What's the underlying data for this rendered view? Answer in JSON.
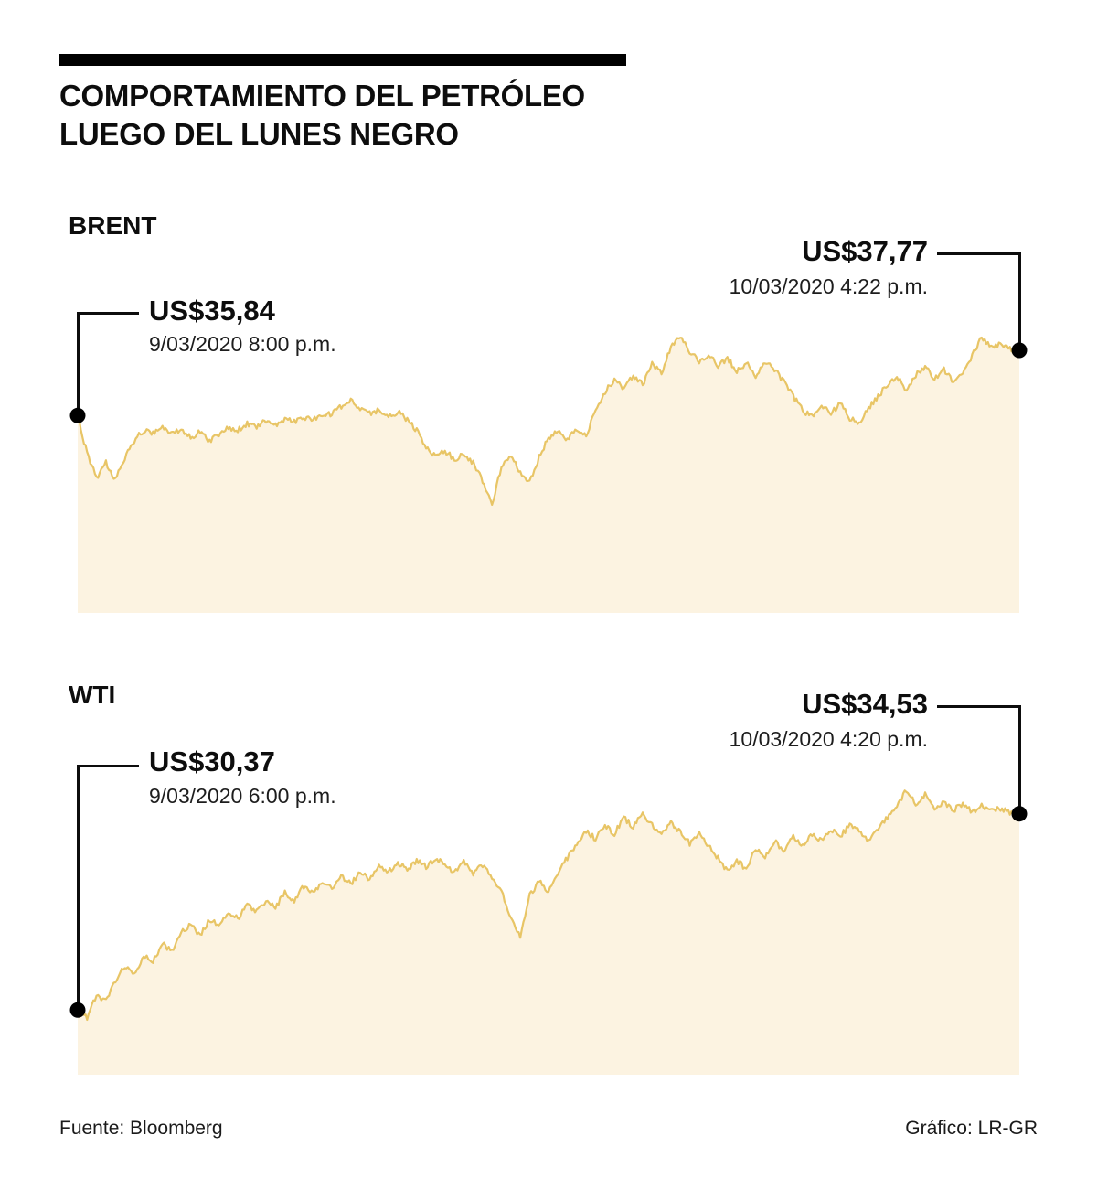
{
  "title": {
    "line1": "COMPORTAMIENTO DEL PETRÓLEO",
    "line2": "LUEGO DEL LUNES NEGRO"
  },
  "footer": {
    "source": "Fuente: Bloomberg",
    "credit": "Gráfico: LR-GR"
  },
  "colors": {
    "line": "#E8C566",
    "fill": "#FCF3E1",
    "marker": "#000000"
  },
  "chart_data": [
    {
      "type": "area",
      "title": "BRENT",
      "xlabel": "",
      "ylabel": "",
      "legend": "none",
      "grid": false,
      "start_annotation": {
        "price": "US$35,84",
        "datetime": "9/03/2020 8:00 p.m.",
        "value": 35.84
      },
      "end_annotation": {
        "price": "US$37,77",
        "datetime": "10/03/2020 4:22 p.m.",
        "value": 37.77
      },
      "ylim": [
        30.0,
        38.8
      ],
      "values": [
        35.84,
        34.7,
        34.0,
        34.45,
        33.95,
        34.6,
        35.1,
        35.4,
        35.3,
        35.5,
        35.3,
        35.45,
        35.2,
        35.35,
        35.1,
        35.3,
        35.5,
        35.4,
        35.6,
        35.5,
        35.7,
        35.55,
        35.75,
        35.65,
        35.8,
        35.7,
        35.85,
        35.9,
        36.1,
        36.3,
        36.05,
        35.9,
        36.0,
        35.8,
        35.95,
        35.7,
        35.4,
        34.9,
        34.65,
        34.8,
        34.55,
        34.7,
        34.45,
        33.9,
        33.2,
        34.35,
        34.65,
        34.15,
        33.85,
        34.6,
        35.2,
        35.35,
        35.15,
        35.4,
        35.25,
        36.0,
        36.55,
        36.9,
        36.6,
        37.05,
        36.75,
        37.35,
        37.1,
        37.9,
        38.2,
        37.7,
        37.45,
        37.65,
        37.3,
        37.55,
        37.15,
        37.4,
        37.0,
        37.45,
        37.2,
        36.85,
        36.4,
        36.0,
        35.8,
        36.15,
        35.9,
        36.2,
        35.75,
        35.6,
        36.05,
        36.4,
        36.75,
        37.0,
        36.6,
        37.05,
        37.3,
        36.9,
        37.2,
        36.8,
        37.05,
        37.6,
        38.15,
        37.85,
        37.95,
        37.8,
        37.77
      ]
    },
    {
      "type": "area",
      "title": "WTI",
      "xlabel": "",
      "ylabel": "",
      "legend": "none",
      "grid": false,
      "start_annotation": {
        "price": "US$30,37",
        "datetime": "9/03/2020 6:00 p.m.",
        "value": 30.37
      },
      "end_annotation": {
        "price": "US$34,53",
        "datetime": "10/03/2020 4:20 p.m.",
        "value": 34.53
      },
      "ylim": [
        29.0,
        35.3
      ],
      "values": [
        30.37,
        30.2,
        30.7,
        30.55,
        31.0,
        31.3,
        31.1,
        31.55,
        31.4,
        31.8,
        31.6,
        32.0,
        32.2,
        31.95,
        32.3,
        32.15,
        32.45,
        32.3,
        32.6,
        32.45,
        32.7,
        32.55,
        32.85,
        32.7,
        33.0,
        32.85,
        33.1,
        32.95,
        33.2,
        33.05,
        33.3,
        33.15,
        33.4,
        33.3,
        33.5,
        33.35,
        33.55,
        33.4,
        33.6,
        33.45,
        33.3,
        33.5,
        33.25,
        33.45,
        33.2,
        32.9,
        32.3,
        31.9,
        32.8,
        33.1,
        32.85,
        33.3,
        33.6,
        33.9,
        34.15,
        34.0,
        34.3,
        34.1,
        34.45,
        34.25,
        34.55,
        34.3,
        34.1,
        34.35,
        34.15,
        33.9,
        34.1,
        33.85,
        33.6,
        33.3,
        33.55,
        33.35,
        33.8,
        33.6,
        33.95,
        33.75,
        34.05,
        33.85,
        34.1,
        33.95,
        34.2,
        34.05,
        34.3,
        34.15,
        33.95,
        34.2,
        34.45,
        34.7,
        35.05,
        34.75,
        34.95,
        34.65,
        34.8,
        34.6,
        34.75,
        34.55,
        34.7,
        34.6,
        34.65,
        34.55,
        34.53
      ]
    }
  ]
}
